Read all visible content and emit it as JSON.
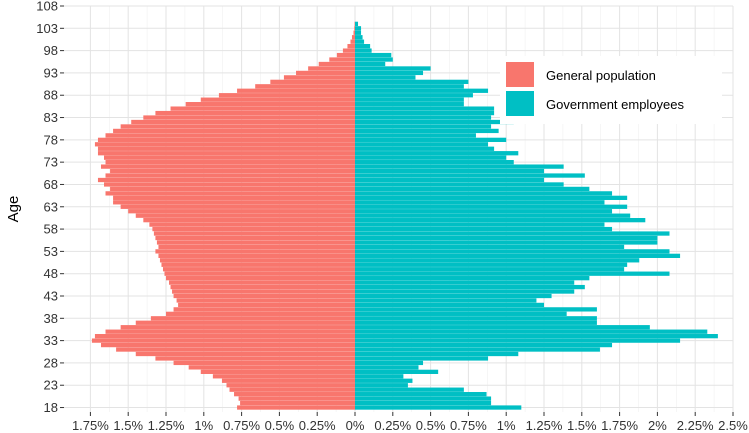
{
  "chart_data": {
    "type": "bar",
    "orientation": "horizontal-population-pyramid",
    "title": "",
    "xlabel": "",
    "ylabel": "Age",
    "xlim": [
      -2.5,
      2.5
    ],
    "x_ticks": [
      -1.75,
      -1.5,
      -1.25,
      -1.0,
      -0.75,
      -0.5,
      -0.25,
      0,
      0.25,
      0.5,
      0.75,
      1.0,
      1.25,
      1.5,
      1.75,
      2.0,
      2.25,
      2.5
    ],
    "x_tick_labels": [
      "1.75%",
      "1.5%",
      "1.25%",
      "1%",
      "0.75%",
      "0.5%",
      "0.25%",
      "0%",
      "0.25%",
      "0.5%",
      "0.75%",
      "1%",
      "1.25%",
      "1.5%",
      "1.75%",
      "2%",
      "2.25%",
      "2.5%"
    ],
    "ylim": [
      17,
      108
    ],
    "y_ticks": [
      18,
      23,
      28,
      33,
      38,
      43,
      48,
      53,
      58,
      63,
      68,
      73,
      78,
      83,
      88,
      93,
      98,
      103,
      108
    ],
    "y_tick_labels": [
      "18",
      "23",
      "28",
      "33",
      "38",
      "43",
      "48",
      "53",
      "58",
      "63",
      "68",
      "73",
      "78",
      "83",
      "88",
      "93",
      "98",
      "103",
      "108"
    ],
    "grid": true,
    "legend_position": "top-right",
    "ages": [
      18,
      19,
      20,
      21,
      22,
      23,
      24,
      25,
      26,
      27,
      28,
      29,
      30,
      31,
      32,
      33,
      34,
      35,
      36,
      37,
      38,
      39,
      40,
      41,
      42,
      43,
      44,
      45,
      46,
      47,
      48,
      49,
      50,
      51,
      52,
      53,
      54,
      55,
      56,
      57,
      58,
      59,
      60,
      61,
      62,
      63,
      64,
      65,
      66,
      67,
      68,
      69,
      70,
      71,
      72,
      73,
      74,
      75,
      76,
      77,
      78,
      79,
      80,
      81,
      82,
      83,
      84,
      85,
      86,
      87,
      88,
      89,
      90,
      91,
      92,
      93,
      94,
      95,
      96,
      97,
      98,
      99,
      100,
      101,
      102,
      103,
      104
    ],
    "series": [
      {
        "name": "General population",
        "color": "#F8766D",
        "side": "left",
        "values": [
          0.78,
          0.76,
          0.77,
          0.8,
          0.83,
          0.85,
          0.88,
          0.94,
          1.02,
          1.1,
          1.2,
          1.32,
          1.45,
          1.58,
          1.68,
          1.74,
          1.72,
          1.65,
          1.55,
          1.45,
          1.35,
          1.25,
          1.2,
          1.17,
          1.18,
          1.2,
          1.21,
          1.22,
          1.23,
          1.25,
          1.26,
          1.27,
          1.28,
          1.29,
          1.3,
          1.32,
          1.3,
          1.31,
          1.32,
          1.33,
          1.34,
          1.36,
          1.4,
          1.45,
          1.5,
          1.55,
          1.6,
          1.6,
          1.65,
          1.62,
          1.66,
          1.7,
          1.65,
          1.62,
          1.68,
          1.65,
          1.66,
          1.7,
          1.7,
          1.72,
          1.7,
          1.65,
          1.6,
          1.55,
          1.48,
          1.4,
          1.32,
          1.22,
          1.12,
          1.02,
          0.9,
          0.78,
          0.66,
          0.56,
          0.47,
          0.39,
          0.31,
          0.24,
          0.17,
          0.12,
          0.08,
          0.05,
          0.03,
          0.02,
          0.01,
          0.005,
          0.003
        ]
      },
      {
        "name": "Government employees",
        "color": "#00BFC4",
        "side": "right",
        "values": [
          1.1,
          0.9,
          0.9,
          0.87,
          0.72,
          0.35,
          0.38,
          0.32,
          0.55,
          0.42,
          0.45,
          0.88,
          1.08,
          1.62,
          1.7,
          2.15,
          2.4,
          2.33,
          1.95,
          1.6,
          1.6,
          1.4,
          1.6,
          1.25,
          1.2,
          1.3,
          1.45,
          1.52,
          1.45,
          1.55,
          2.08,
          1.78,
          1.8,
          1.88,
          2.15,
          2.08,
          1.78,
          2.0,
          2.0,
          2.08,
          1.7,
          1.65,
          1.92,
          1.82,
          1.7,
          1.8,
          1.65,
          1.8,
          1.7,
          1.55,
          1.38,
          1.25,
          1.52,
          1.25,
          1.38,
          1.05,
          1.0,
          1.08,
          0.92,
          0.88,
          1.0,
          0.8,
          0.95,
          0.9,
          1.05,
          0.9,
          0.92,
          0.92,
          0.72,
          0.72,
          0.78,
          0.88,
          0.72,
          0.75,
          0.4,
          0.45,
          0.5,
          0.2,
          0.25,
          0.24,
          0.11,
          0.1,
          0.06,
          0.05,
          0.04,
          0.04,
          0.02
        ]
      }
    ]
  }
}
